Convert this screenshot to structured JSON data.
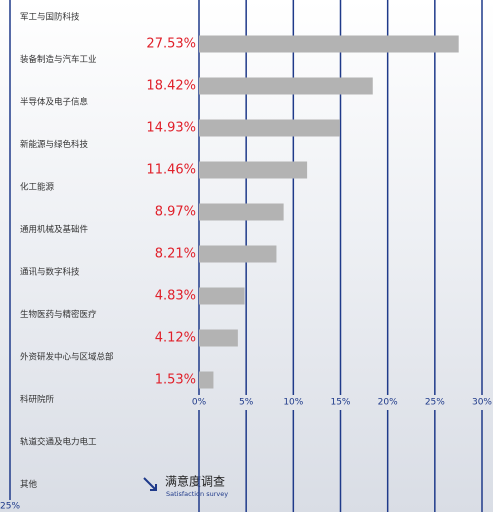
{
  "sidebar": {
    "items": [
      "军工与国防科技",
      "装备制造与汽车工业",
      "半导体及电子信息",
      "新能源与绿色科技",
      "化工能源",
      "通用机械及基础件",
      "通讯与数字科技",
      "生物医药与精密医疗",
      "外资研发中心与区域总部",
      "科研院所",
      "轨道交通及电力电工",
      "其他"
    ],
    "scale_label": "25%"
  },
  "chart_data": {
    "type": "hbar",
    "values": [
      27.53,
      18.42,
      14.93,
      11.46,
      8.97,
      8.21,
      4.83,
      4.12,
      1.53
    ],
    "value_labels": [
      "27.53%",
      "18.42%",
      "14.93%",
      "11.46%",
      "8.97%",
      "8.21%",
      "4.83%",
      "4.12%",
      "1.53%"
    ],
    "color": "#b3b3b3",
    "label_color": "#e0202a",
    "grid_color": "#1f3a8a",
    "xlim": [
      0,
      30
    ],
    "xticks": [
      {
        "value": 0,
        "label": "0%"
      },
      {
        "value": 5,
        "label": "5%"
      },
      {
        "value": 10,
        "label": "10%"
      },
      {
        "value": 15,
        "label": "15%"
      },
      {
        "value": 20,
        "label": "20%"
      },
      {
        "value": 25,
        "label": "25%"
      },
      {
        "value": 30,
        "label": "30%"
      }
    ],
    "grid": true
  },
  "footer": {
    "title": "满意度调查",
    "subtitle": "Satisfaction survey"
  }
}
